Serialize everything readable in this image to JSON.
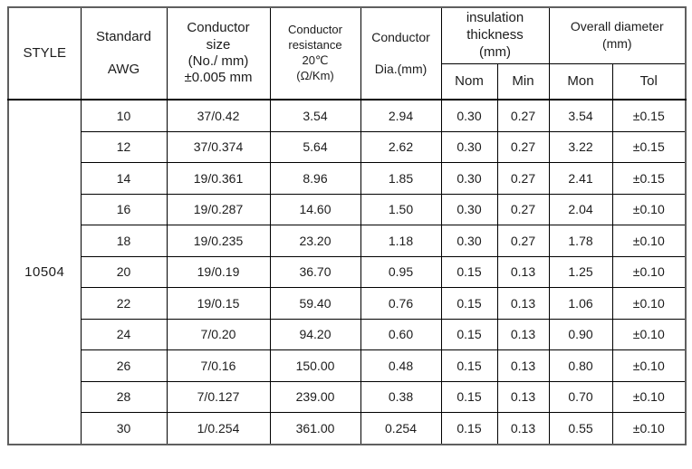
{
  "colors": {
    "background": "#ffffff",
    "inner_border": "#000000",
    "outer_border": "#5f5f5f",
    "text": "#1c1c1c"
  },
  "header": {
    "style": "STYLE",
    "standard": [
      "Standard",
      "AWG"
    ],
    "conductor_size": [
      "Conductor",
      "size",
      "(No./ mm)",
      "±0.005 mm"
    ],
    "conductor_resistance": [
      "Conductor",
      "resistance",
      "20℃",
      "(Ω/Km)"
    ],
    "conductor_dia": [
      "Conductor",
      "Dia.(mm)"
    ],
    "insulation": [
      "insulation",
      "thickness",
      "(mm)"
    ],
    "insulation_sub": [
      "Nom",
      "Min"
    ],
    "overall": [
      "Overall diameter",
      "(mm)"
    ],
    "overall_sub": [
      "Mon",
      "Tol"
    ]
  },
  "style_value": "10504",
  "rows": [
    {
      "awg": "10",
      "size": "37/0.42",
      "resistance": "3.54",
      "dia": "2.94",
      "nom": "0.30",
      "min": "0.27",
      "mon": "3.54",
      "tol": "±0.15"
    },
    {
      "awg": "12",
      "size": "37/0.374",
      "resistance": "5.64",
      "dia": "2.62",
      "nom": "0.30",
      "min": "0.27",
      "mon": "3.22",
      "tol": "±0.15"
    },
    {
      "awg": "14",
      "size": "19/0.361",
      "resistance": "8.96",
      "dia": "1.85",
      "nom": "0.30",
      "min": "0.27",
      "mon": "2.41",
      "tol": "±0.15"
    },
    {
      "awg": "16",
      "size": "19/0.287",
      "resistance": "14.60",
      "dia": "1.50",
      "nom": "0.30",
      "min": "0.27",
      "mon": "2.04",
      "tol": "±0.10"
    },
    {
      "awg": "18",
      "size": "19/0.235",
      "resistance": "23.20",
      "dia": "1.18",
      "nom": "0.30",
      "min": "0.27",
      "mon": "1.78",
      "tol": "±0.10"
    },
    {
      "awg": "20",
      "size": "19/0.19",
      "resistance": "36.70",
      "dia": "0.95",
      "nom": "0.15",
      "min": "0.13",
      "mon": "1.25",
      "tol": "±0.10"
    },
    {
      "awg": "22",
      "size": "19/0.15",
      "resistance": "59.40",
      "dia": "0.76",
      "nom": "0.15",
      "min": "0.13",
      "mon": "1.06",
      "tol": "±0.10"
    },
    {
      "awg": "24",
      "size": "7/0.20",
      "resistance": "94.20",
      "dia": "0.60",
      "nom": "0.15",
      "min": "0.13",
      "mon": "0.90",
      "tol": "±0.10"
    },
    {
      "awg": "26",
      "size": "7/0.16",
      "resistance": "150.00",
      "dia": "0.48",
      "nom": "0.15",
      "min": "0.13",
      "mon": "0.80",
      "tol": "±0.10"
    },
    {
      "awg": "28",
      "size": "7/0.127",
      "resistance": "239.00",
      "dia": "0.38",
      "nom": "0.15",
      "min": "0.13",
      "mon": "0.70",
      "tol": "±0.10"
    },
    {
      "awg": "30",
      "size": "1/0.254",
      "resistance": "361.00",
      "dia": "0.254",
      "nom": "0.15",
      "min": "0.13",
      "mon": "0.55",
      "tol": "±0.10"
    }
  ]
}
